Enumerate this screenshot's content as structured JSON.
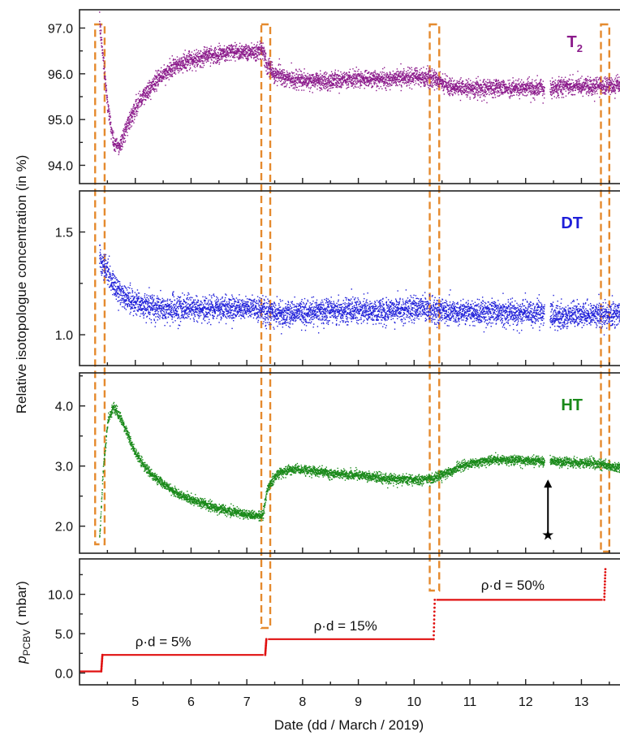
{
  "chart_data": {
    "type": "scatter",
    "x_axis": {
      "label_main": "Date",
      "label_unit": "(dd / March / 2019)",
      "ticks": [
        5,
        6,
        7,
        8,
        9,
        10,
        11,
        12,
        13
      ],
      "range": [
        4.0,
        13.75
      ]
    },
    "shared_ylabel": "Relative isotopologue concentration  (in %)",
    "panels": [
      {
        "id": "T2",
        "label": "T",
        "label_sub": "2",
        "color": "#8b1a8b",
        "ylim": [
          93.6,
          97.4
        ],
        "yticks": [
          94.0,
          95.0,
          96.0,
          97.0
        ],
        "yticklabels": [
          "94.0",
          "95.0",
          "96.0",
          "97.0"
        ],
        "series": {
          "x": [
            4.35,
            4.42,
            4.5,
            4.6,
            4.7,
            4.85,
            5.0,
            5.25,
            5.5,
            5.75,
            6.0,
            6.25,
            6.5,
            6.75,
            7.0,
            7.28,
            7.35,
            7.5,
            7.75,
            8.0,
            8.5,
            9.0,
            9.5,
            10.0,
            10.35,
            10.45,
            10.7,
            11.0,
            11.5,
            12.0,
            12.35,
            12.45,
            12.8,
            13.3,
            13.55,
            13.75
          ],
          "y": [
            97.1,
            96.3,
            95.3,
            94.5,
            94.4,
            94.9,
            95.3,
            95.7,
            96.0,
            96.2,
            96.3,
            96.4,
            96.45,
            96.5,
            96.5,
            96.5,
            96.2,
            96.0,
            95.9,
            95.85,
            95.85,
            95.9,
            95.9,
            95.95,
            95.9,
            95.85,
            95.7,
            95.7,
            95.7,
            95.7,
            95.7,
            95.7,
            95.75,
            95.75,
            95.75,
            95.75
          ],
          "spread": 0.17
        }
      },
      {
        "id": "DT",
        "label": "DT",
        "label_sub": "",
        "color": "#1f1fd9",
        "ylim": [
          0.85,
          1.7
        ],
        "yticks": [
          1.0,
          1.5
        ],
        "yticklabels": [
          "1.0",
          "1.5"
        ],
        "series": {
          "x": [
            4.35,
            4.45,
            4.55,
            4.7,
            4.9,
            5.2,
            5.6,
            6.0,
            6.5,
            7.0,
            7.28,
            7.35,
            7.6,
            8.0,
            8.5,
            9.0,
            9.5,
            10.0,
            10.35,
            10.45,
            10.8,
            11.2,
            11.6,
            12.0,
            12.35,
            12.45,
            12.9,
            13.3,
            13.55,
            13.75
          ],
          "y": [
            1.38,
            1.33,
            1.27,
            1.21,
            1.17,
            1.14,
            1.13,
            1.13,
            1.13,
            1.13,
            1.13,
            1.11,
            1.1,
            1.11,
            1.12,
            1.12,
            1.12,
            1.13,
            1.13,
            1.12,
            1.11,
            1.11,
            1.11,
            1.11,
            1.11,
            1.09,
            1.1,
            1.1,
            1.1,
            1.1
          ],
          "spread": 0.055
        }
      },
      {
        "id": "HT",
        "label": "HT",
        "label_sub": "",
        "color": "#1a8a1a",
        "ylim": [
          1.55,
          4.55
        ],
        "yticks": [
          2.0,
          3.0,
          4.0
        ],
        "yticklabels": [
          "2.0",
          "3.0",
          "4.0"
        ],
        "series": {
          "x": [
            4.35,
            4.42,
            4.5,
            4.6,
            4.7,
            4.85,
            5.0,
            5.25,
            5.5,
            5.75,
            6.0,
            6.25,
            6.5,
            6.75,
            7.0,
            7.28,
            7.35,
            7.5,
            7.75,
            8.0,
            8.5,
            9.0,
            9.5,
            10.0,
            10.35,
            10.45,
            10.7,
            11.0,
            11.5,
            12.0,
            12.35,
            12.45,
            12.8,
            13.3,
            13.55,
            13.75
          ],
          "y": [
            1.8,
            3.0,
            3.75,
            4.0,
            3.85,
            3.55,
            3.2,
            2.9,
            2.7,
            2.55,
            2.45,
            2.37,
            2.3,
            2.25,
            2.2,
            2.18,
            2.6,
            2.85,
            2.95,
            2.95,
            2.88,
            2.85,
            2.8,
            2.78,
            2.8,
            2.85,
            2.95,
            3.05,
            3.12,
            3.1,
            3.08,
            3.08,
            3.07,
            3.05,
            3.0,
            3.0
          ],
          "spread": 0.07
        },
        "annotation": {
          "symbol": "★",
          "x": 12.4,
          "note_arrow": true
        }
      },
      {
        "id": "pPCBV",
        "ylabel_main": "p",
        "ylabel_sub": "PCBV",
        "ylabel_unit": "( mbar)",
        "color": "#e01010",
        "ylim": [
          -1.5,
          14.5
        ],
        "yticks": [
          0.0,
          5.0,
          10.0
        ],
        "yticklabels": [
          "0.0",
          "5.0",
          "10.0"
        ],
        "steps": [
          {
            "x0": 4.0,
            "x1": 4.38,
            "y": 0.2
          },
          {
            "x0": 4.42,
            "x1": 7.3,
            "y": 2.3
          },
          {
            "x0": 7.38,
            "x1": 10.33,
            "y": 4.3
          },
          {
            "x0": 10.4,
            "x1": 13.38,
            "y": 9.3
          }
        ],
        "rises": [
          {
            "x": 4.4,
            "y0": 0.2,
            "y1": 2.3
          },
          {
            "x": 7.34,
            "y0": 2.3,
            "y1": 4.3
          },
          {
            "x": 10.36,
            "y0": 4.3,
            "y1": 9.3
          },
          {
            "x": 13.42,
            "y0": 9.3,
            "y1": 13.2
          }
        ],
        "step_annotations": [
          {
            "text": "ρ·d = 5%",
            "x": 5.0,
            "y": 3.4
          },
          {
            "text": "ρ·d = 15%",
            "x": 8.2,
            "y": 5.4
          },
          {
            "text": "ρ·d = 50%",
            "x": 11.2,
            "y": 10.6
          }
        ]
      }
    ],
    "highlight_windows": [
      {
        "x0": 4.28,
        "x1": 4.45
      },
      {
        "x0": 7.26,
        "x1": 7.42
      },
      {
        "x0": 10.28,
        "x1": 10.45
      },
      {
        "x0": 13.35,
        "x1": 13.5
      }
    ],
    "highlight_color": "#e58a2e"
  }
}
